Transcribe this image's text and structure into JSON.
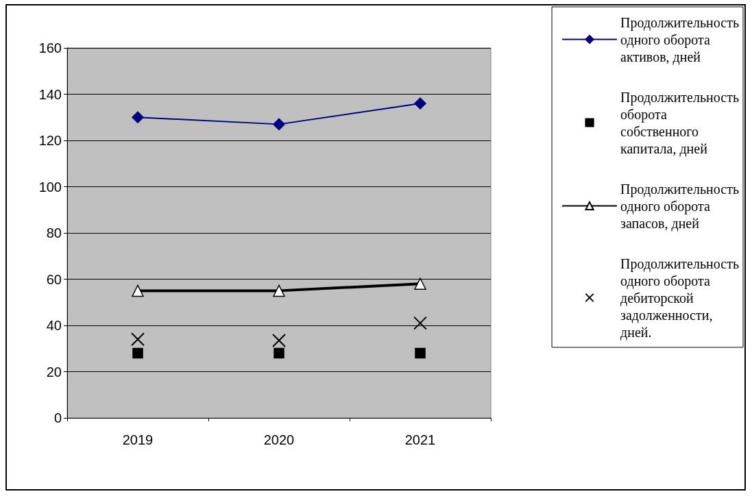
{
  "chart_data": {
    "type": "line",
    "categories": [
      "2019",
      "2020",
      "2021"
    ],
    "series": [
      {
        "name": "Продолжительность одного оборота активов, дней",
        "color": "#000080",
        "marker": "diamond",
        "values": [
          130,
          127,
          136
        ]
      },
      {
        "name": "Продолжительность оборота собственного капитала, дней",
        "color": "#000000",
        "type": "scatter",
        "marker": "square",
        "values": [
          28,
          28,
          28
        ]
      },
      {
        "name": "Продолжительность одного оборота запасов, дней",
        "color": "#000000",
        "marker": "triangle",
        "values": [
          55,
          55,
          58
        ]
      },
      {
        "name": "Продолжительность одного оборота дебиторской задолженности, дней.",
        "color": "#000000",
        "type": "scatter",
        "marker": "cross",
        "values": [
          34,
          33.5,
          41
        ]
      }
    ],
    "ylim": [
      0,
      160
    ],
    "yticks": [
      0,
      20,
      40,
      60,
      80,
      100,
      120,
      140,
      160
    ],
    "grid": "y",
    "legend": "right"
  }
}
